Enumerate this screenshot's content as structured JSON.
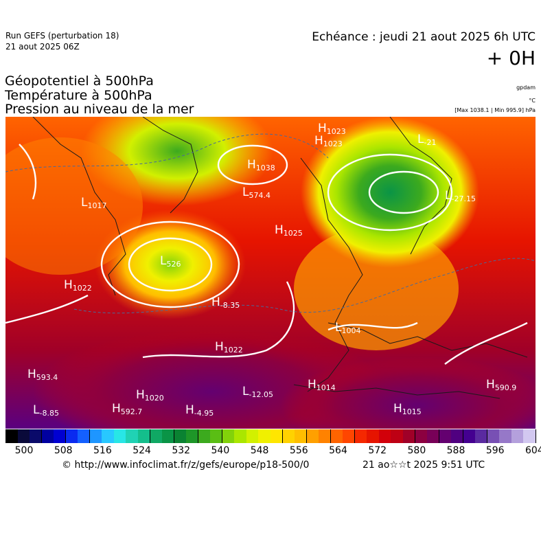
{
  "header": {
    "run_title": "Run GEFS (perturbation 18)",
    "run_date": "21 aout 2025 06Z",
    "forecast_label": "Echéance : jeudi 21 aout 2025 6h UTC",
    "lead_time": "+ 0H"
  },
  "variables": {
    "geopotential": "Géopotentiel à 500hPa",
    "temperature": "Température à 500hPa",
    "pressure": "Pression au niveau de la mer"
  },
  "units": {
    "geopotential": "gpdam",
    "temperature": "°C",
    "pressure": "[Max 1038.1 | Min 995.9] hPa"
  },
  "map_labels": [
    {
      "text": "H",
      "sub": "1023"
    },
    {
      "text": "H",
      "sub": "1023"
    },
    {
      "text": "H",
      "sub": "1038"
    },
    {
      "text": "L",
      "sub": "574.4"
    },
    {
      "text": "H",
      "sub": "1025"
    },
    {
      "text": "L",
      "sub": "1017"
    },
    {
      "text": "L",
      "sub": "526"
    },
    {
      "text": "H",
      "sub": "1022"
    },
    {
      "text": "H",
      "sub": "-8.35"
    },
    {
      "text": "H",
      "sub": "1022"
    },
    {
      "text": "H",
      "sub": "593.4"
    },
    {
      "text": "H",
      "sub": "1020"
    },
    {
      "text": "H",
      "sub": "592.7"
    },
    {
      "text": "L",
      "sub": "-8.85"
    },
    {
      "text": "H",
      "sub": "-4.95"
    },
    {
      "text": "L",
      "sub": "-12.05"
    },
    {
      "text": "H",
      "sub": "1014"
    },
    {
      "text": "L",
      "sub": "1004"
    },
    {
      "text": "H",
      "sub": "1015"
    },
    {
      "text": "H",
      "sub": "590.9"
    },
    {
      "text": "L",
      "sub": "-27.15"
    },
    {
      "text": "L",
      "sub": "-21"
    }
  ],
  "colorbar": {
    "tick_labels": [
      "500",
      "508",
      "516",
      "524",
      "532",
      "540",
      "548",
      "556",
      "564",
      "572",
      "580",
      "588",
      "596",
      "604"
    ],
    "colors": [
      "#000000",
      "#0a0a3a",
      "#0a0a6a",
      "#0000a0",
      "#0000d2",
      "#0a2af0",
      "#1460ff",
      "#1e96ff",
      "#28c8ff",
      "#28e6e6",
      "#20d2b4",
      "#14be8c",
      "#10a864",
      "#0a9446",
      "#0a8232",
      "#1e9628",
      "#3caa1e",
      "#5abe14",
      "#82d20a",
      "#aae600",
      "#d2f000",
      "#f0f000",
      "#ffe600",
      "#ffd200",
      "#ffbe00",
      "#ffa000",
      "#ff8200",
      "#ff6400",
      "#ff4600",
      "#f52800",
      "#e61400",
      "#d2000a",
      "#be0014",
      "#a00028",
      "#8c0040",
      "#780058",
      "#640070",
      "#500080",
      "#440090",
      "#5a2aa0",
      "#7850b4",
      "#9678c8",
      "#b4a0dc",
      "#d2c8f0"
    ]
  },
  "footer": {
    "copyright": "© http://www.infoclimat.fr/z/gefs/europe/p18-500/0",
    "issued": "21 ao☆☆t 2025  9:51 UTC"
  }
}
